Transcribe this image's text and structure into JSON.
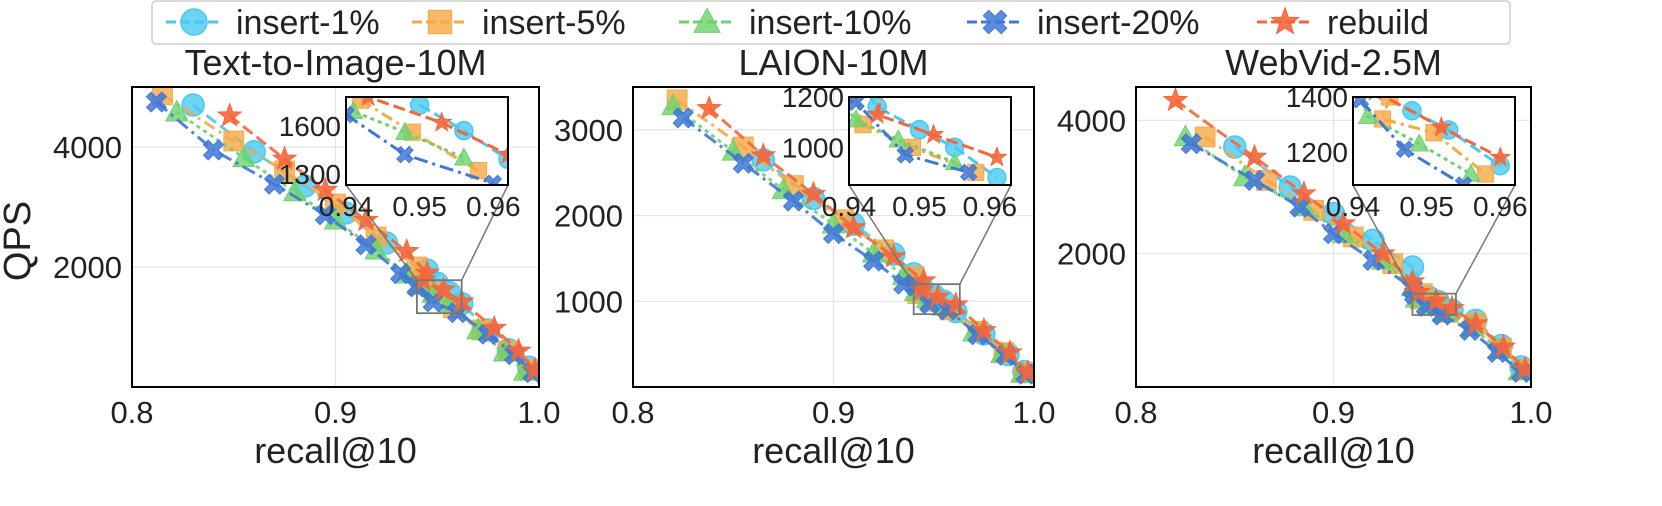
{
  "legend": [
    {
      "name": "insert-1%",
      "color": "#48C9F0",
      "marker": "circle"
    },
    {
      "name": "insert-5%",
      "color": "#F6A945",
      "marker": "square"
    },
    {
      "name": "insert-10%",
      "color": "#6CD36C",
      "marker": "triangle"
    },
    {
      "name": "insert-20%",
      "color": "#3E78D8",
      "marker": "x"
    },
    {
      "name": "rebuild",
      "color": "#F5663A",
      "marker": "star"
    }
  ],
  "shared": {
    "xlabel": "recall@10",
    "ylabel": "QPS"
  },
  "chart_data": [
    {
      "type": "line",
      "title": "Text-to-Image-10M",
      "xlabel": "recall@10",
      "ylabel": "QPS",
      "xlim": [
        0.8,
        1.0
      ],
      "ylim": [
        0,
        5000
      ],
      "xticks": [
        0.8,
        0.9,
        1.0
      ],
      "yticks": [
        2000,
        4000
      ],
      "grid": true,
      "inset": {
        "xlim": [
          0.94,
          0.962
        ],
        "ylim": [
          1230,
          1780
        ],
        "xticks": [
          0.94,
          0.95,
          0.96
        ],
        "yticks": [
          1300,
          1600
        ]
      },
      "series": [
        {
          "name": "insert-1%",
          "points": [
            [
              0.83,
              4700
            ],
            [
              0.86,
              3920
            ],
            [
              0.885,
              3350
            ],
            [
              0.905,
              2900
            ],
            [
              0.925,
              2400
            ],
            [
              0.945,
              1950
            ],
            [
              0.95,
              1730
            ],
            [
              0.956,
              1570
            ],
            [
              0.962,
              1390
            ],
            [
              0.975,
              950
            ],
            [
              0.985,
              620
            ],
            [
              0.995,
              330
            ]
          ]
        },
        {
          "name": "insert-5%",
          "points": [
            [
              0.815,
              4870
            ],
            [
              0.85,
              4100
            ],
            [
              0.875,
              3600
            ],
            [
              0.9,
              3050
            ],
            [
              0.92,
              2500
            ],
            [
              0.94,
              2000
            ],
            [
              0.942,
              1760
            ],
            [
              0.949,
              1560
            ],
            [
              0.958,
              1320
            ],
            [
              0.972,
              950
            ],
            [
              0.985,
              600
            ],
            [
              0.995,
              290
            ]
          ]
        },
        {
          "name": "insert-10%",
          "points": [
            [
              0.822,
              4580
            ],
            [
              0.855,
              3820
            ],
            [
              0.88,
              3250
            ],
            [
              0.9,
              2780
            ],
            [
              0.92,
              2280
            ],
            [
              0.935,
              1880
            ],
            [
              0.941,
              1690
            ],
            [
              0.948,
              1560
            ],
            [
              0.956,
              1400
            ],
            [
              0.97,
              950
            ],
            [
              0.983,
              580
            ],
            [
              0.993,
              260
            ]
          ]
        },
        {
          "name": "insert-20%",
          "points": [
            [
              0.812,
              4750
            ],
            [
              0.84,
              3950
            ],
            [
              0.87,
              3380
            ],
            [
              0.895,
              2870
            ],
            [
              0.915,
              2370
            ],
            [
              0.932,
              1890
            ],
            [
              0.94,
              1670
            ],
            [
              0.948,
              1420
            ],
            [
              0.96,
              1240
            ],
            [
              0.975,
              880
            ],
            [
              0.988,
              540
            ],
            [
              0.997,
              240
            ]
          ]
        },
        {
          "name": "rebuild",
          "points": [
            [
              0.848,
              4520
            ],
            [
              0.875,
              3800
            ],
            [
              0.895,
              3280
            ],
            [
              0.915,
              2780
            ],
            [
              0.935,
              2260
            ],
            [
              0.945,
              1900
            ],
            [
              0.943,
              1780
            ],
            [
              0.953,
              1620
            ],
            [
              0.962,
              1420
            ],
            [
              0.978,
              980
            ],
            [
              0.99,
              600
            ],
            [
              0.998,
              280
            ]
          ]
        }
      ]
    },
    {
      "type": "line",
      "title": "LAION-10M",
      "xlabel": "recall@10",
      "ylabel": "",
      "xlim": [
        0.8,
        1.0
      ],
      "ylim": [
        0,
        3500
      ],
      "xticks": [
        0.8,
        0.9,
        1.0
      ],
      "yticks": [
        1000,
        2000,
        3000
      ],
      "grid": true,
      "inset": {
        "xlim": [
          0.94,
          0.963
        ],
        "ylim": [
          850,
          1200
        ],
        "xticks": [
          0.94,
          0.95,
          0.96
        ],
        "yticks": [
          1000,
          1200
        ]
      },
      "series": [
        {
          "name": "insert-1%",
          "points": [
            [
              0.865,
              2650
            ],
            [
              0.89,
              2200
            ],
            [
              0.91,
              1900
            ],
            [
              0.93,
              1550
            ],
            [
              0.94,
              1320
            ],
            [
              0.944,
              1160
            ],
            [
              0.95,
              1070
            ],
            [
              0.955,
              1000
            ],
            [
              0.961,
              880
            ],
            [
              0.975,
              620
            ],
            [
              0.987,
              380
            ],
            [
              0.995,
              180
            ]
          ]
        },
        {
          "name": "insert-5%",
          "points": [
            [
              0.822,
              3350
            ],
            [
              0.855,
              2800
            ],
            [
              0.88,
              2350
            ],
            [
              0.905,
              1950
            ],
            [
              0.925,
              1600
            ],
            [
              0.94,
              1290
            ],
            [
              0.942,
              1090
            ],
            [
              0.949,
              1000
            ],
            [
              0.958,
              900
            ],
            [
              0.972,
              650
            ],
            [
              0.985,
              400
            ],
            [
              0.995,
              170
            ]
          ]
        },
        {
          "name": "insert-10%",
          "points": [
            [
              0.82,
              3280
            ],
            [
              0.85,
              2750
            ],
            [
              0.875,
              2300
            ],
            [
              0.9,
              1900
            ],
            [
              0.92,
              1560
            ],
            [
              0.935,
              1300
            ],
            [
              0.941,
              1110
            ],
            [
              0.947,
              1030
            ],
            [
              0.955,
              940
            ],
            [
              0.97,
              640
            ],
            [
              0.984,
              390
            ],
            [
              0.994,
              160
            ]
          ]
        },
        {
          "name": "insert-20%",
          "points": [
            [
              0.825,
              3140
            ],
            [
              0.855,
              2610
            ],
            [
              0.88,
              2170
            ],
            [
              0.9,
              1790
            ],
            [
              0.92,
              1470
            ],
            [
              0.935,
              1200
            ],
            [
              0.941,
              1180
            ],
            [
              0.948,
              970
            ],
            [
              0.957,
              900
            ],
            [
              0.972,
              610
            ],
            [
              0.986,
              370
            ],
            [
              0.996,
              150
            ]
          ]
        },
        {
          "name": "rebuild",
          "points": [
            [
              0.838,
              3250
            ],
            [
              0.865,
              2700
            ],
            [
              0.89,
              2250
            ],
            [
              0.91,
              1860
            ],
            [
              0.93,
              1520
            ],
            [
              0.945,
              1240
            ],
            [
              0.944,
              1130
            ],
            [
              0.952,
              1050
            ],
            [
              0.961,
              960
            ],
            [
              0.975,
              660
            ],
            [
              0.988,
              400
            ],
            [
              0.997,
              170
            ]
          ]
        }
      ]
    },
    {
      "type": "line",
      "title": "WebVid-2.5M",
      "xlabel": "recall@10",
      "ylabel": "",
      "xlim": [
        0.8,
        1.0
      ],
      "ylim": [
        0,
        4500
      ],
      "xticks": [
        0.8,
        0.9,
        1.0
      ],
      "yticks": [
        2000,
        4000
      ],
      "grid": true,
      "inset": {
        "xlim": [
          0.94,
          0.962
        ],
        "ylim": [
          1080,
          1400
        ],
        "xticks": [
          0.94,
          0.95,
          0.96
        ],
        "yticks": [
          1200,
          1400
        ]
      },
      "series": [
        {
          "name": "insert-1%",
          "points": [
            [
              0.85,
              3600
            ],
            [
              0.878,
              3000
            ],
            [
              0.9,
              2600
            ],
            [
              0.92,
              2200
            ],
            [
              0.94,
              1800
            ],
            [
              0.948,
              1350
            ],
            [
              0.953,
              1280
            ],
            [
              0.96,
              1150
            ],
            [
              0.972,
              1000
            ],
            [
              0.985,
              620
            ],
            [
              0.995,
              300
            ]
          ]
        },
        {
          "name": "insert-5%",
          "points": [
            [
              0.835,
              3750
            ],
            [
              0.866,
              3100
            ],
            [
              0.89,
              2650
            ],
            [
              0.91,
              2250
            ],
            [
              0.93,
              1850
            ],
            [
              0.945,
              1400
            ],
            [
              0.944,
              1320
            ],
            [
              0.951,
              1270
            ],
            [
              0.958,
              1120
            ],
            [
              0.972,
              950
            ],
            [
              0.985,
              580
            ],
            [
              0.996,
              260
            ]
          ]
        },
        {
          "name": "insert-10%",
          "points": [
            [
              0.825,
              3750
            ],
            [
              0.855,
              3150
            ],
            [
              0.885,
              2700
            ],
            [
              0.905,
              2300
            ],
            [
              0.925,
              1900
            ],
            [
              0.94,
              1500
            ],
            [
              0.942,
              1330
            ],
            [
              0.949,
              1230
            ],
            [
              0.956,
              1120
            ],
            [
              0.97,
              900
            ],
            [
              0.984,
              560
            ],
            [
              0.994,
              240
            ]
          ]
        },
        {
          "name": "insert-20%",
          "points": [
            [
              0.828,
              3650
            ],
            [
              0.86,
              3100
            ],
            [
              0.883,
              2700
            ],
            [
              0.9,
              2300
            ],
            [
              0.92,
              1900
            ],
            [
              0.94,
              1480
            ],
            [
              0.941,
              1390
            ],
            [
              0.947,
              1210
            ],
            [
              0.955,
              1080
            ],
            [
              0.969,
              850
            ],
            [
              0.983,
              520
            ],
            [
              0.995,
              220
            ]
          ]
        },
        {
          "name": "rebuild",
          "points": [
            [
              0.82,
              4300
            ],
            [
              0.86,
              3450
            ],
            [
              0.885,
              2900
            ],
            [
              0.905,
              2450
            ],
            [
              0.925,
              2000
            ],
            [
              0.94,
              1580
            ],
            [
              0.943,
              1420
            ],
            [
              0.952,
              1290
            ],
            [
              0.96,
              1180
            ],
            [
              0.972,
              950
            ],
            [
              0.986,
              600
            ],
            [
              0.997,
              270
            ]
          ]
        }
      ]
    }
  ]
}
